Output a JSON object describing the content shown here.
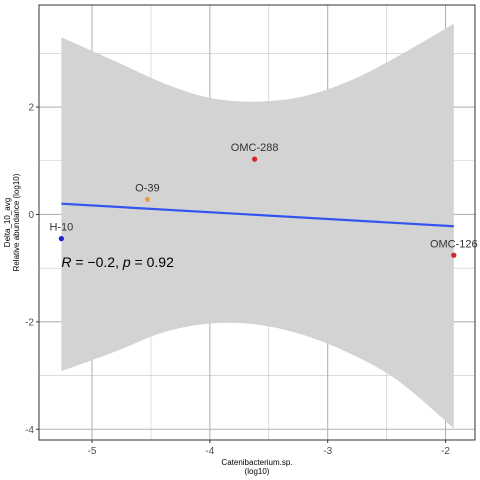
{
  "chart_data": {
    "type": "scatter",
    "xlabel_lines": [
      "Catenibacterium.sp.",
      "(log10)"
    ],
    "ylabel_lines": [
      "Delta_10_avg",
      "Relative abundance (log10)"
    ],
    "xlim": [
      -5.45,
      -1.75
    ],
    "ylim": [
      -4.2,
      3.9
    ],
    "x_ticks": [
      -5,
      -4,
      -3,
      -2
    ],
    "y_ticks": [
      -4,
      -2,
      0,
      2
    ],
    "x_tick_labels": [
      "-5",
      "-4",
      "-3",
      "-2"
    ],
    "y_tick_labels": [
      "-4",
      "-2",
      "0",
      "2"
    ],
    "points": [
      {
        "label": "H-10",
        "x": -5.26,
        "y": -0.45,
        "color": "#1f1fcc"
      },
      {
        "label": "O-39",
        "x": -4.53,
        "y": 0.28,
        "color": "#e8a046"
      },
      {
        "label": "OMC-288",
        "x": -3.62,
        "y": 1.03,
        "color": "#d62728"
      },
      {
        "label": "OMC-126",
        "x": -1.93,
        "y": -0.76,
        "color": "#d62728"
      }
    ],
    "fit_line": {
      "x": [
        -5.26,
        -1.93
      ],
      "y": [
        0.2,
        -0.22
      ],
      "color": "#3355ee"
    },
    "confidence_band": {
      "x": [
        -5.26,
        -4.8,
        -4.4,
        -4.0,
        -3.6,
        -3.2,
        -2.8,
        -2.4,
        -1.93
      ],
      "upper": [
        3.3,
        2.85,
        2.45,
        2.17,
        2.1,
        2.2,
        2.5,
        2.95,
        3.55
      ],
      "lower": [
        -2.92,
        -2.55,
        -2.2,
        -2.03,
        -2.05,
        -2.25,
        -2.6,
        -3.1,
        -3.98
      ],
      "color": "#d3d3d3"
    },
    "stat_text": {
      "R": "R = −0.2, ",
      "p": "p = 0.92"
    },
    "grid": true,
    "background": "#ffffff",
    "grid_color": "#c8c8c8"
  }
}
